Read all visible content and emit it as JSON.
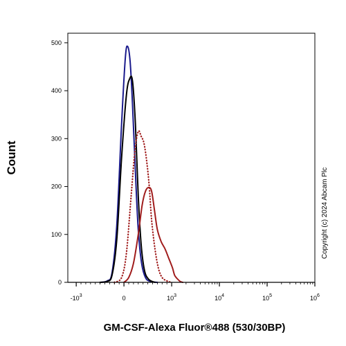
{
  "chart_data": {
    "type": "line",
    "title": "",
    "xlabel": "GM-CSF-Alexa Fluor®488 (530/30BP)",
    "ylabel": "Count",
    "x_scale": "biexponential",
    "xlim": [
      -1500,
      1000000
    ],
    "ylim": [
      0,
      520
    ],
    "x_ticks": [
      {
        "value": -1000,
        "base": "-10",
        "exp": "3"
      },
      {
        "value": 0,
        "base": "0",
        "exp": ""
      },
      {
        "value": 1000,
        "base": "10",
        "exp": "3"
      },
      {
        "value": 10000,
        "base": "10",
        "exp": "4"
      },
      {
        "value": 100000,
        "base": "10",
        "exp": "5"
      },
      {
        "value": 1000000,
        "base": "10",
        "exp": "6"
      }
    ],
    "y_ticks": [
      0,
      100,
      200,
      300,
      400,
      500
    ],
    "grid": false,
    "legend": "none",
    "annotation": "Copyright (c) 2024 Abcam Plc",
    "series": [
      {
        "color": "#1a1a8c",
        "style": "solid",
        "points": [
          [
            -500,
            0
          ],
          [
            -350,
            3
          ],
          [
            -250,
            20
          ],
          [
            -150,
            120
          ],
          [
            -50,
            330
          ],
          [
            30,
            470
          ],
          [
            80,
            492
          ],
          [
            130,
            460
          ],
          [
            180,
            370
          ],
          [
            240,
            230
          ],
          [
            300,
            110
          ],
          [
            370,
            40
          ],
          [
            450,
            10
          ],
          [
            550,
            2
          ],
          [
            700,
            0
          ]
        ]
      },
      {
        "color": "#000000",
        "style": "solid",
        "points": [
          [
            -500,
            0
          ],
          [
            -350,
            2
          ],
          [
            -250,
            15
          ],
          [
            -150,
            90
          ],
          [
            -50,
            260
          ],
          [
            50,
            390
          ],
          [
            120,
            425
          ],
          [
            180,
            420
          ],
          [
            240,
            330
          ],
          [
            300,
            180
          ],
          [
            360,
            80
          ],
          [
            430,
            25
          ],
          [
            520,
            6
          ],
          [
            650,
            0
          ]
        ]
      },
      {
        "color": "#a01c1c",
        "style": "dotted",
        "points": [
          [
            -200,
            0
          ],
          [
            -50,
            10
          ],
          [
            50,
            60
          ],
          [
            150,
            180
          ],
          [
            230,
            275
          ],
          [
            300,
            315
          ],
          [
            360,
            305
          ],
          [
            420,
            290
          ],
          [
            480,
            250
          ],
          [
            530,
            200
          ],
          [
            580,
            130
          ],
          [
            650,
            70
          ],
          [
            720,
            30
          ],
          [
            800,
            10
          ],
          [
            900,
            3
          ],
          [
            1000,
            0
          ]
        ]
      },
      {
        "color": "#a01c1c",
        "style": "solid",
        "points": [
          [
            0,
            0
          ],
          [
            100,
            10
          ],
          [
            200,
            40
          ],
          [
            300,
            100
          ],
          [
            380,
            160
          ],
          [
            450,
            190
          ],
          [
            520,
            198
          ],
          [
            580,
            190
          ],
          [
            640,
            150
          ],
          [
            700,
            110
          ],
          [
            780,
            85
          ],
          [
            860,
            70
          ],
          [
            940,
            50
          ],
          [
            1040,
            30
          ],
          [
            1150,
            15
          ],
          [
            1300,
            8
          ],
          [
            1500,
            2
          ],
          [
            1700,
            0
          ]
        ]
      }
    ]
  }
}
